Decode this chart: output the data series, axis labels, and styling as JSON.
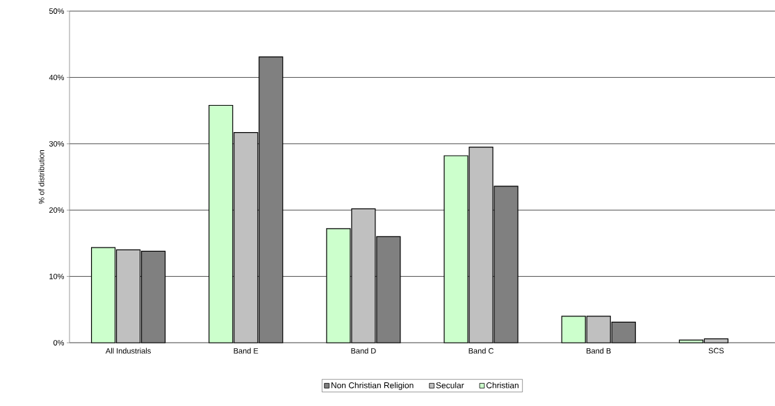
{
  "chart_data": {
    "type": "bar",
    "ylabel": "% of distribution",
    "categories": [
      "All Industrials",
      "Band E",
      "Band D",
      "Band C",
      "Band B",
      "SCS"
    ],
    "series": [
      {
        "name": "Christian",
        "color": "#ccffcc",
        "values": [
          14.35,
          35.8,
          17.2,
          28.2,
          4.0,
          0.4
        ]
      },
      {
        "name": "Secular",
        "color": "#c0c0c0",
        "values": [
          14.0,
          31.7,
          20.2,
          29.5,
          4.0,
          0.6
        ]
      },
      {
        "name": "Non Christian Religion",
        "color": "#808080",
        "values": [
          13.8,
          43.1,
          16.0,
          23.6,
          3.1,
          null
        ]
      }
    ],
    "ylim": [
      0,
      50
    ],
    "yticks": [
      {
        "value": 0,
        "label": "0%"
      },
      {
        "value": 10,
        "label": "10%"
      },
      {
        "value": 20,
        "label": "20%"
      },
      {
        "value": 30,
        "label": "30%"
      },
      {
        "value": 40,
        "label": "40%"
      },
      {
        "value": 50,
        "label": "50%"
      }
    ],
    "grid": "y",
    "legend": "bottom"
  }
}
